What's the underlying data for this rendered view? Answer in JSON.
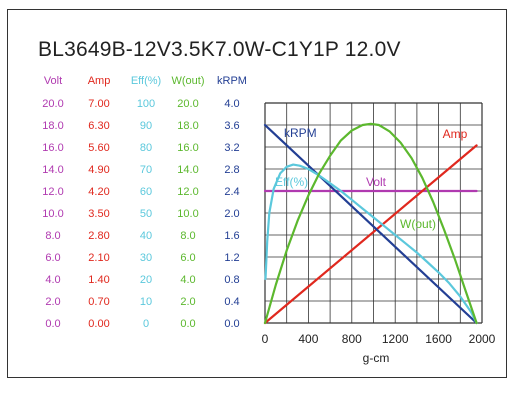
{
  "title": "BL3649B-12V3.5K7.0W-C1Y1P   12.0V",
  "chart_data": {
    "type": "line",
    "title": "BL3649B-12V3.5K7.0W-C1Y1P   12.0V",
    "xlabel": "g-cm",
    "xlim": [
      0,
      2000
    ],
    "x_ticks": [
      "0",
      "400",
      "800",
      "1200",
      "1600",
      "2000"
    ],
    "grid": true,
    "axes": [
      {
        "name": "Volt",
        "color": "#b03ab0",
        "min": 0,
        "max": 20,
        "ticks": [
          "20.0",
          "18.0",
          "16.0",
          "14.0",
          "12.0",
          "10.0",
          "8.0",
          "6.0",
          "4.0",
          "2.0",
          "0.0"
        ]
      },
      {
        "name": "Amp",
        "color": "#e0281e",
        "min": 0,
        "max": 7,
        "ticks": [
          "7.00",
          "6.30",
          "5.60",
          "4.90",
          "4.20",
          "3.50",
          "2.80",
          "2.10",
          "1.40",
          "0.70",
          "0.00"
        ]
      },
      {
        "name": "Eff(%)",
        "color": "#5bc8dc",
        "min": 0,
        "max": 100,
        "ticks": [
          "100",
          "90",
          "80",
          "70",
          "60",
          "50",
          "40",
          "30",
          "20",
          "10",
          "0"
        ]
      },
      {
        "name": "W(out)",
        "color": "#5cb82e",
        "min": 0,
        "max": 20,
        "ticks": [
          "20.0",
          "18.0",
          "16.0",
          "14.0",
          "12.0",
          "10.0",
          "8.0",
          "6.0",
          "4.0",
          "2.0",
          "0.0"
        ]
      },
      {
        "name": "kRPM",
        "color": "#233f94",
        "min": 0,
        "max": 4,
        "ticks": [
          "4.0",
          "3.6",
          "3.2",
          "2.8",
          "2.4",
          "2.0",
          "1.6",
          "1.2",
          "0.8",
          "0.4",
          "0.0"
        ]
      }
    ],
    "series": [
      {
        "name": "Volt",
        "label": "Volt",
        "axis": 0,
        "color": "#b03ab0",
        "x": [
          0,
          1950
        ],
        "y": [
          12.0,
          12.0
        ]
      },
      {
        "name": "Amp",
        "label": "Amp",
        "axis": 1,
        "color": "#e0281e",
        "x": [
          0,
          1950
        ],
        "y": [
          0.0,
          5.65
        ]
      },
      {
        "name": "kRPM",
        "label": "kRPM",
        "axis": 4,
        "color": "#233f94",
        "x": [
          0,
          1950
        ],
        "y": [
          3.6,
          0.0
        ]
      },
      {
        "name": "Eff(%)",
        "label": "Eff(%)",
        "axis": 2,
        "color": "#5bc8dc",
        "x": [
          5,
          20,
          40,
          80,
          140,
          200,
          260,
          320,
          400,
          500,
          600,
          700,
          800,
          900,
          1000,
          1100,
          1200,
          1300,
          1400,
          1500,
          1600,
          1700,
          1800,
          1900,
          1950
        ],
        "y": [
          20,
          37,
          50,
          61,
          68,
          71,
          72,
          71.5,
          70,
          67,
          63.5,
          60,
          56,
          52,
          48,
          44,
          40,
          36,
          32,
          27.5,
          23,
          18,
          12,
          5,
          0
        ]
      },
      {
        "name": "W(out)",
        "label": "W(out)",
        "axis": 3,
        "color": "#5cb82e",
        "x": [
          0,
          100,
          200,
          300,
          400,
          500,
          600,
          700,
          800,
          900,
          975,
          1050,
          1150,
          1250,
          1350,
          1450,
          1550,
          1650,
          1750,
          1850,
          1950
        ],
        "y": [
          0.0,
          3.5,
          6.6,
          9.3,
          11.6,
          13.6,
          15.2,
          16.6,
          17.5,
          18.0,
          18.1,
          18.0,
          17.4,
          16.4,
          15.0,
          13.2,
          11.0,
          8.5,
          5.8,
          2.9,
          0.0
        ]
      }
    ]
  }
}
